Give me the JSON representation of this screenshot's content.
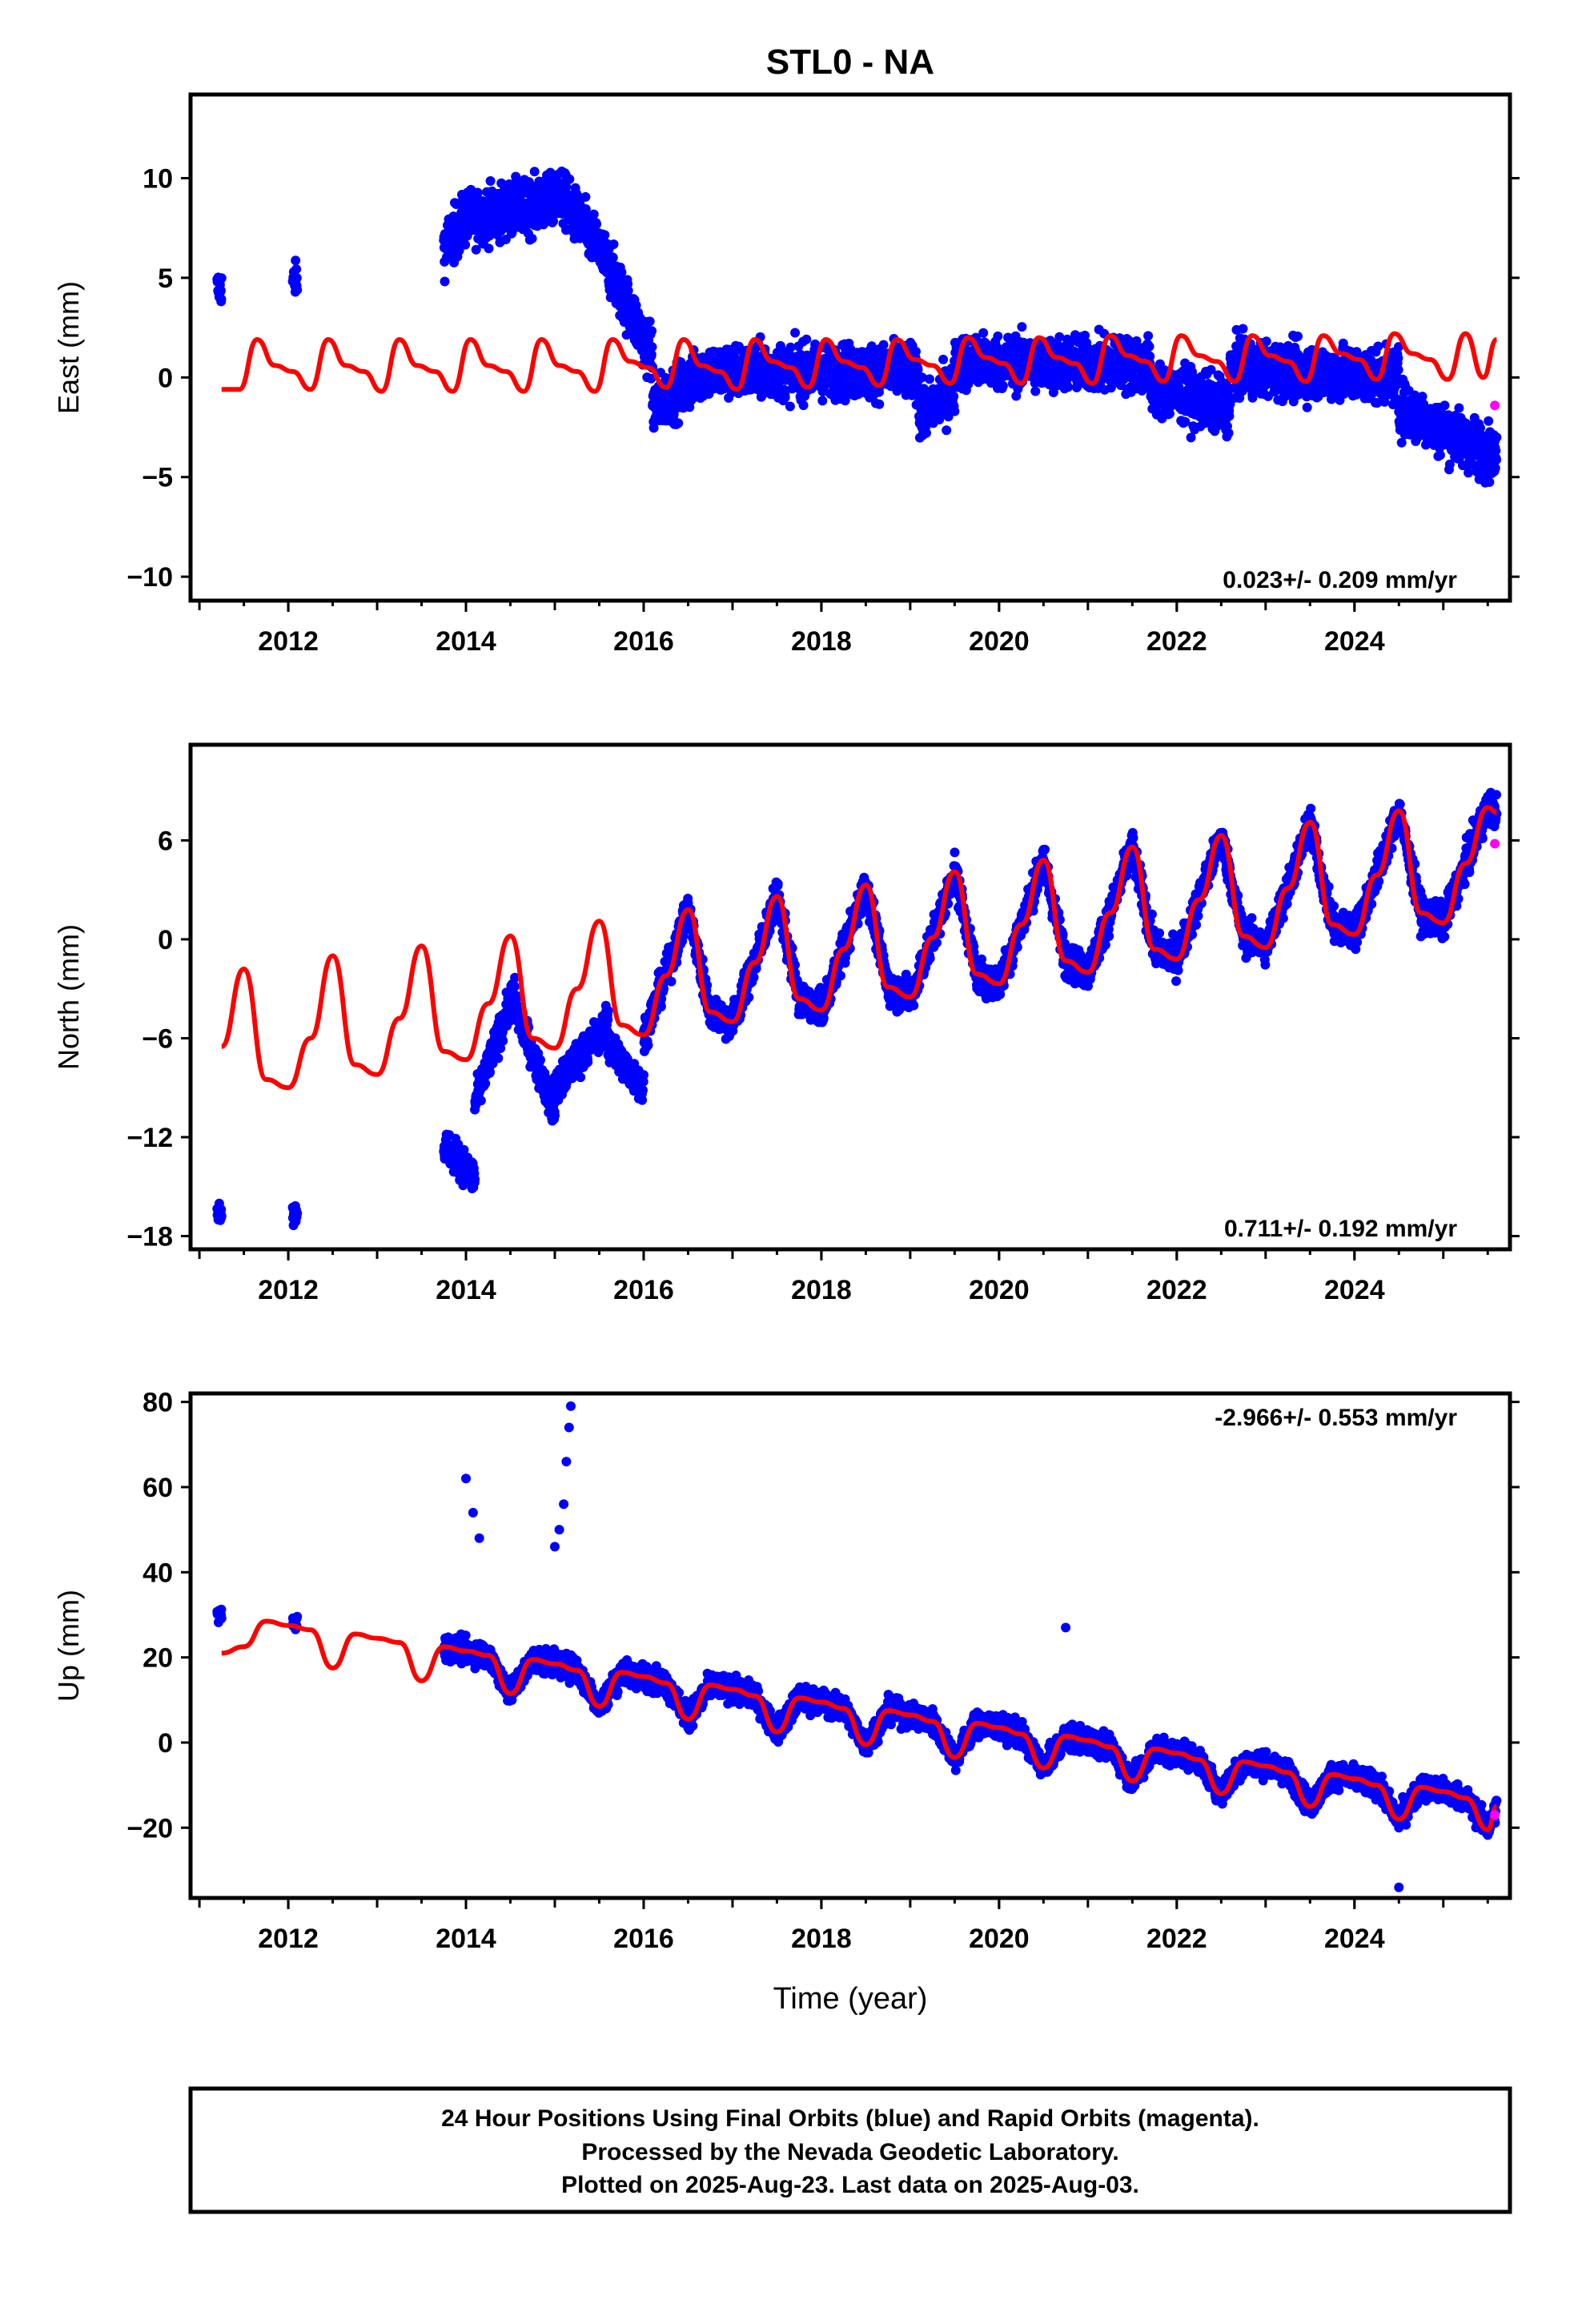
{
  "title": "STL0 - NA",
  "colors": {
    "final_orbits": "#0000ff",
    "rapid_orbits": "#ff00ff",
    "model": "#ff0000",
    "axes": "#000000"
  },
  "xlabel": "Time (year)",
  "footer": {
    "line1": "24 Hour Positions Using Final Orbits (blue) and Rapid Orbits (magenta).",
    "line2": "Processed by the Nevada Geodetic Laboratory.",
    "line3": "Plotted on 2025-Aug-23. Last data on 2025-Aug-03."
  },
  "chart_data": [
    {
      "type": "scatter",
      "key": "east",
      "ylabel": "East (mm)",
      "rate_label": "0.023+/- 0.209 mm/yr",
      "rate_position": "bottom-right",
      "xlim": [
        2010.9,
        2025.75
      ],
      "ylim": [
        -11.2,
        14.2
      ],
      "xticks": [
        2012,
        2014,
        2016,
        2018,
        2020,
        2022,
        2024
      ],
      "yticks": [
        -10,
        -5,
        0,
        5,
        10
      ],
      "model_curve": {
        "x": [
          2011.25,
          2011.45,
          2011.65,
          2011.85,
          2012.05,
          2012.25,
          2012.45,
          2012.65,
          2012.85,
          2013.05,
          2013.25,
          2013.45,
          2013.65,
          2013.85,
          2014.05,
          2014.25,
          2014.45,
          2014.65,
          2014.85,
          2015.05,
          2015.25,
          2015.45,
          2015.65,
          2015.85,
          2016.05,
          2016.25,
          2016.45,
          2016.65,
          2016.85,
          2017.05,
          2017.25,
          2017.45,
          2017.65,
          2017.85,
          2018.05,
          2018.25,
          2018.45,
          2018.65,
          2018.85,
          2019.05,
          2019.25,
          2019.45,
          2019.65,
          2019.85,
          2020.05,
          2020.25,
          2020.45,
          2020.65,
          2020.85,
          2021.05,
          2021.25,
          2021.45,
          2021.65,
          2021.85,
          2022.05,
          2022.25,
          2022.45,
          2022.65,
          2022.85,
          2023.05,
          2023.25,
          2023.45,
          2023.65,
          2023.85,
          2024.05,
          2024.25,
          2024.45,
          2024.65,
          2024.85,
          2025.05,
          2025.25,
          2025.45,
          2025.6
        ],
        "y": [
          -0.6,
          -0.6,
          1.9,
          0.6,
          0.3,
          -0.6,
          1.9,
          0.6,
          0.3,
          -0.7,
          1.9,
          0.6,
          0.3,
          -0.7,
          1.9,
          0.6,
          0.3,
          -0.7,
          1.9,
          0.6,
          0.3,
          -0.7,
          1.9,
          0.8,
          0.5,
          -0.5,
          1.9,
          0.6,
          0.3,
          -0.6,
          1.9,
          0.8,
          0.5,
          -0.5,
          1.9,
          0.8,
          0.5,
          -0.4,
          1.9,
          0.9,
          0.6,
          -0.3,
          2.0,
          1.0,
          0.7,
          -0.3,
          2.0,
          1.0,
          0.7,
          -0.3,
          2.1,
          1.1,
          0.8,
          -0.2,
          2.1,
          1.1,
          0.8,
          -0.2,
          2.1,
          1.1,
          0.8,
          -0.2,
          2.1,
          1.2,
          0.9,
          -0.1,
          2.2,
          1.2,
          0.9,
          -0.1,
          2.2,
          0.0,
          1.9
        ]
      },
      "segments": [
        {
          "start": 2011.2,
          "end": 2011.25,
          "level": [
            4.5,
            4.5
          ]
        },
        {
          "start": 2012.05,
          "end": 2012.1,
          "level": [
            4.9,
            4.9
          ]
        },
        {
          "start": 2013.75,
          "end": 2014.0,
          "level": [
            6.5,
            8.0
          ]
        },
        {
          "start": 2014.0,
          "end": 2015.0,
          "level": [
            8.0,
            8.8
          ]
        },
        {
          "start": 2015.0,
          "end": 2015.5,
          "level": [
            9.5,
            6.5
          ]
        },
        {
          "start": 2015.5,
          "end": 2016.1,
          "level": [
            6.5,
            1.0
          ]
        },
        {
          "start": 2016.1,
          "end": 2016.6,
          "level": [
            -1.5,
            0.0
          ]
        },
        {
          "start": 2016.6,
          "end": 2019.1,
          "level": [
            0.3,
            0.3
          ]
        },
        {
          "start": 2019.1,
          "end": 2019.5,
          "level": [
            -2.0,
            -0.5
          ]
        },
        {
          "start": 2019.5,
          "end": 2021.7,
          "level": [
            0.8,
            0.6
          ]
        },
        {
          "start": 2021.7,
          "end": 2022.6,
          "level": [
            -0.5,
            -1.5
          ]
        },
        {
          "start": 2022.6,
          "end": 2024.5,
          "level": [
            0.5,
            0.0
          ]
        },
        {
          "start": 2024.5,
          "end": 2025.6,
          "level": [
            -1.5,
            -4.0
          ]
        }
      ],
      "scatter_amplitude": 2.4,
      "rapid_points": {
        "x": [
          2025.58
        ],
        "y": [
          -1.4
        ]
      }
    },
    {
      "type": "scatter",
      "key": "north",
      "ylabel": "North (mm)",
      "rate_label": "0.711+/- 0.192 mm/yr",
      "rate_position": "bottom-right",
      "xlim": [
        2010.9,
        2025.75
      ],
      "ylim": [
        -18.8,
        11.8
      ],
      "xticks": [
        2012,
        2014,
        2016,
        2018,
        2020,
        2022,
        2024
      ],
      "yticks": [
        -18,
        -12,
        -6,
        0,
        6
      ],
      "model_curve": {
        "x": [
          2011.25,
          2011.5,
          2011.75,
          2012.0,
          2012.25,
          2012.5,
          2012.75,
          2013.0,
          2013.25,
          2013.5,
          2013.75,
          2014.0,
          2014.25,
          2014.5,
          2014.75,
          2015.0,
          2015.25,
          2015.5,
          2015.75,
          2016.0,
          2016.25,
          2016.5,
          2016.75,
          2017.0,
          2017.25,
          2017.5,
          2017.75,
          2018.0,
          2018.25,
          2018.5,
          2018.75,
          2019.0,
          2019.25,
          2019.5,
          2019.75,
          2020.0,
          2020.25,
          2020.5,
          2020.75,
          2021.0,
          2021.25,
          2021.5,
          2021.75,
          2022.0,
          2022.25,
          2022.5,
          2022.75,
          2023.0,
          2023.25,
          2023.5,
          2023.75,
          2024.0,
          2024.25,
          2024.5,
          2024.75,
          2025.0,
          2025.25,
          2025.5,
          2025.6
        ],
        "y": [
          -6.5,
          -1.8,
          -8.5,
          -9.0,
          -6.0,
          -1.0,
          -7.6,
          -8.2,
          -4.8,
          -0.4,
          -6.8,
          -7.3,
          -3.9,
          0.2,
          -6.0,
          -6.6,
          -3.0,
          1.1,
          -5.2,
          -5.8,
          -2.2,
          1.8,
          -4.4,
          -5.0,
          -1.4,
          2.6,
          -3.6,
          -4.3,
          -0.6,
          3.3,
          -2.9,
          -3.5,
          0.1,
          4.1,
          -2.1,
          -2.7,
          0.9,
          4.8,
          -1.3,
          -2.0,
          1.6,
          5.6,
          -0.6,
          -1.2,
          2.4,
          6.3,
          0.2,
          -0.5,
          3.1,
          7.1,
          0.9,
          0.3,
          3.9,
          7.8,
          1.6,
          1.0,
          4.6,
          8.0,
          7.7
        ]
      },
      "segments": [
        {
          "start": 2011.2,
          "end": 2011.25,
          "level": [
            -16.4,
            -16.4
          ]
        },
        {
          "start": 2012.05,
          "end": 2012.1,
          "level": [
            -16.6,
            -16.6
          ]
        },
        {
          "start": 2013.75,
          "end": 2014.1,
          "level": [
            -12.5,
            -14.5
          ]
        },
        {
          "start": 2014.1,
          "end": 2014.55,
          "level": [
            -10.0,
            -3.0
          ]
        },
        {
          "start": 2014.55,
          "end": 2015.0,
          "level": [
            -4.0,
            -10.5
          ]
        },
        {
          "start": 2015.0,
          "end": 2015.6,
          "level": [
            -9.0,
            -5.0
          ]
        },
        {
          "start": 2015.6,
          "end": 2016.0,
          "level": [
            -6.5,
            -9.0
          ]
        },
        {
          "start": 2016.0,
          "end": 2025.6,
          "level": "model"
        }
      ],
      "scatter_amplitude": 1.8,
      "rapid_points": {
        "x": [
          2025.58
        ],
        "y": [
          5.8
        ]
      }
    },
    {
      "type": "scatter",
      "key": "up",
      "ylabel": "Up (mm)",
      "rate_label": "-2.966+/- 0.553 mm/yr",
      "rate_position": "top-right",
      "xlim": [
        2010.9,
        2025.75
      ],
      "ylim": [
        -36.5,
        82
      ],
      "xticks": [
        2012,
        2014,
        2016,
        2018,
        2020,
        2022,
        2024
      ],
      "yticks": [
        -20,
        0,
        20,
        40,
        60,
        80
      ],
      "model_curve": {
        "x": [
          2011.25,
          2011.5,
          2011.75,
          2012.0,
          2012.25,
          2012.5,
          2012.75,
          2013.0,
          2013.25,
          2013.5,
          2013.75,
          2014.0,
          2014.25,
          2014.5,
          2014.75,
          2015.0,
          2015.25,
          2015.5,
          2015.75,
          2016.0,
          2016.25,
          2016.5,
          2016.75,
          2017.0,
          2017.25,
          2017.5,
          2017.75,
          2018.0,
          2018.25,
          2018.5,
          2018.75,
          2019.0,
          2019.25,
          2019.5,
          2019.75,
          2020.0,
          2020.25,
          2020.5,
          2020.75,
          2021.0,
          2021.25,
          2021.5,
          2021.75,
          2022.0,
          2022.25,
          2022.5,
          2022.75,
          2023.0,
          2023.25,
          2023.5,
          2023.75,
          2024.0,
          2024.25,
          2024.5,
          2024.75,
          2025.0,
          2025.25,
          2025.5,
          2025.6
        ],
        "y": [
          21.0,
          22.5,
          28.5,
          27.5,
          26.5,
          17.5,
          25.5,
          24.5,
          23.5,
          14.5,
          22.5,
          21.5,
          20.5,
          11.5,
          19.5,
          18.5,
          17.0,
          8.5,
          16.5,
          15.5,
          14.0,
          5.5,
          13.5,
          12.5,
          11.0,
          2.5,
          10.5,
          9.5,
          8.0,
          -0.5,
          7.5,
          6.5,
          5.0,
          -3.5,
          4.5,
          3.5,
          2.0,
          -6.0,
          1.5,
          0.5,
          -1.0,
          -9.0,
          -1.5,
          -2.5,
          -4.0,
          -12.0,
          -4.5,
          -5.5,
          -7.0,
          -15.0,
          -7.5,
          -8.5,
          -10.0,
          -18.0,
          -10.5,
          -11.5,
          -13.0,
          -20.5,
          -15.0
        ]
      },
      "segments": [
        {
          "start": 2011.2,
          "end": 2011.25,
          "level": [
            30.0,
            30.0
          ]
        },
        {
          "start": 2012.05,
          "end": 2012.1,
          "level": [
            28.0,
            28.0
          ]
        },
        {
          "start": 2013.75,
          "end": 2025.6,
          "level": "model"
        }
      ],
      "scatter_amplitude": 5.0,
      "spikes": [
        {
          "x": [
            2014.0,
            2014.08,
            2014.15
          ],
          "y": [
            62.0,
            54.0,
            48.0
          ]
        },
        {
          "x": [
            2015.0,
            2015.05,
            2015.1,
            2015.13,
            2015.16,
            2015.18
          ],
          "y": [
            46.0,
            50.0,
            56.0,
            66.0,
            74.0,
            79.0
          ]
        },
        {
          "x": [
            2020.75,
            2024.5
          ],
          "y": [
            27.0,
            -34.0
          ]
        }
      ],
      "rapid_points": {
        "x": [
          2025.58
        ],
        "y": [
          -17.0
        ]
      }
    }
  ]
}
